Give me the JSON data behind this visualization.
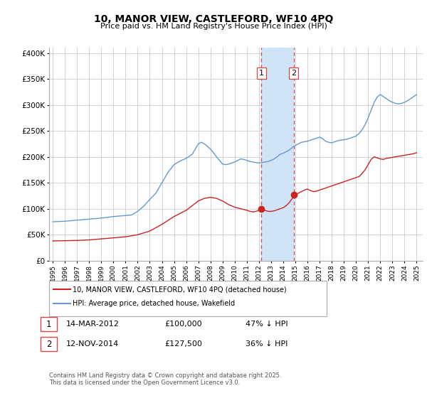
{
  "title": "10, MANOR VIEW, CASTLEFORD, WF10 4PQ",
  "subtitle": "Price paid vs. HM Land Registry's House Price Index (HPI)",
  "ylim": [
    0,
    410000
  ],
  "xlim": [
    1994.7,
    2025.5
  ],
  "yticks": [
    0,
    50000,
    100000,
    150000,
    200000,
    250000,
    300000,
    350000,
    400000
  ],
  "ytick_labels": [
    "£0",
    "£50K",
    "£100K",
    "£150K",
    "£200K",
    "£250K",
    "£300K",
    "£350K",
    "£400K"
  ],
  "transaction1_date": 2012.2,
  "transaction1_price": 100000,
  "transaction1_label": "1",
  "transaction1_date_str": "14-MAR-2012",
  "transaction1_price_str": "£100,000",
  "transaction1_hpi_str": "47% ↓ HPI",
  "transaction2_date": 2014.87,
  "transaction2_price": 127500,
  "transaction2_label": "2",
  "transaction2_date_str": "12-NOV-2014",
  "transaction2_price_str": "£127,500",
  "transaction2_hpi_str": "36% ↓ HPI",
  "hpi_color": "#6699cc",
  "price_color": "#cc2222",
  "marker_color": "#cc2222",
  "shade_color": "#d0e4f7",
  "dashed_line_color": "#dd4444",
  "background_color": "#ffffff",
  "legend1_text": "10, MANOR VIEW, CASTLEFORD, WF10 4PQ (detached house)",
  "legend2_text": "HPI: Average price, detached house, Wakefield",
  "footer_text": "Contains HM Land Registry data © Crown copyright and database right 2025.\nThis data is licensed under the Open Government Licence v3.0.",
  "hpi_years": [
    1995,
    1995.5,
    1996,
    1996.5,
    1997,
    1997.5,
    1998,
    1998.5,
    1999,
    1999.5,
    2000,
    2000.5,
    2001,
    2001.5,
    2002,
    2002.5,
    2003,
    2003.5,
    2004,
    2004.5,
    2005,
    2005.5,
    2006,
    2006.5,
    2007,
    2007.25,
    2007.5,
    2007.75,
    2008,
    2008.25,
    2008.5,
    2008.75,
    2009,
    2009.25,
    2009.5,
    2009.75,
    2010,
    2010.25,
    2010.5,
    2010.75,
    2011,
    2011.25,
    2011.5,
    2011.75,
    2012,
    2012.25,
    2012.5,
    2012.75,
    2013,
    2013.25,
    2013.5,
    2013.75,
    2014,
    2014.25,
    2014.5,
    2014.75,
    2015,
    2015.25,
    2015.5,
    2015.75,
    2016,
    2016.25,
    2016.5,
    2016.75,
    2017,
    2017.25,
    2017.5,
    2017.75,
    2018,
    2018.25,
    2018.5,
    2018.75,
    2019,
    2019.25,
    2019.5,
    2019.75,
    2020,
    2020.25,
    2020.5,
    2020.75,
    2021,
    2021.25,
    2021.5,
    2021.75,
    2022,
    2022.25,
    2022.5,
    2022.75,
    2023,
    2023.25,
    2023.5,
    2023.75,
    2024,
    2024.25,
    2024.5,
    2024.75,
    2025
  ],
  "hpi_values": [
    75000,
    75500,
    76000,
    77000,
    78000,
    79000,
    80000,
    81000,
    82000,
    83500,
    85000,
    86000,
    87000,
    88000,
    95000,
    105000,
    118000,
    130000,
    150000,
    170000,
    185000,
    192000,
    197000,
    205000,
    225000,
    228000,
    225000,
    220000,
    215000,
    208000,
    200000,
    193000,
    186000,
    185000,
    186000,
    188000,
    190000,
    193000,
    196000,
    195000,
    193000,
    191000,
    190000,
    189000,
    188000,
    189000,
    190000,
    191000,
    193000,
    196000,
    200000,
    205000,
    207000,
    210000,
    213000,
    218000,
    222000,
    225000,
    228000,
    229000,
    230000,
    232000,
    234000,
    236000,
    238000,
    235000,
    230000,
    228000,
    227000,
    229000,
    231000,
    232000,
    233000,
    234000,
    236000,
    238000,
    240000,
    245000,
    252000,
    262000,
    275000,
    290000,
    305000,
    315000,
    320000,
    316000,
    312000,
    308000,
    305000,
    303000,
    302000,
    303000,
    305000,
    308000,
    312000,
    316000,
    320000
  ],
  "price_years": [
    1995,
    1996,
    1997,
    1998,
    1999,
    2000,
    2001,
    2002,
    2003,
    2004,
    2005,
    2006,
    2007,
    2007.5,
    2008,
    2008.5,
    2009,
    2009.5,
    2010,
    2010.5,
    2011,
    2011.25,
    2011.5,
    2011.75,
    2012,
    2012.25,
    2012.5,
    2012.75,
    2013,
    2013.25,
    2013.5,
    2013.75,
    2014,
    2014.25,
    2014.5,
    2014.75,
    2015,
    2015.25,
    2015.5,
    2015.75,
    2016,
    2016.25,
    2016.5,
    2016.75,
    2017,
    2017.25,
    2017.5,
    2017.75,
    2018,
    2018.25,
    2018.5,
    2018.75,
    2019,
    2019.25,
    2019.5,
    2019.75,
    2020,
    2020.25,
    2020.5,
    2020.75,
    2021,
    2021.25,
    2021.5,
    2021.75,
    2022,
    2022.25,
    2022.5,
    2022.75,
    2023,
    2023.25,
    2023.5,
    2023.75,
    2024,
    2024.25,
    2024.5,
    2024.75,
    2025
  ],
  "price_values": [
    38000,
    38500,
    39000,
    40000,
    42000,
    44000,
    46000,
    50000,
    57000,
    70000,
    85000,
    97000,
    115000,
    120000,
    122000,
    120000,
    115000,
    108000,
    103000,
    100000,
    97000,
    95000,
    94000,
    95000,
    97000,
    100000,
    97000,
    95000,
    95000,
    96000,
    98000,
    100000,
    102000,
    106000,
    112000,
    120000,
    127500,
    130000,
    133000,
    136000,
    138000,
    135000,
    133000,
    134000,
    136000,
    138000,
    140000,
    142000,
    144000,
    146000,
    148000,
    150000,
    152000,
    154000,
    156000,
    158000,
    160000,
    162000,
    168000,
    175000,
    185000,
    195000,
    200000,
    198000,
    196000,
    195000,
    197000,
    198000,
    199000,
    200000,
    201000,
    202000,
    203000,
    204000,
    205000,
    206000,
    208000
  ]
}
